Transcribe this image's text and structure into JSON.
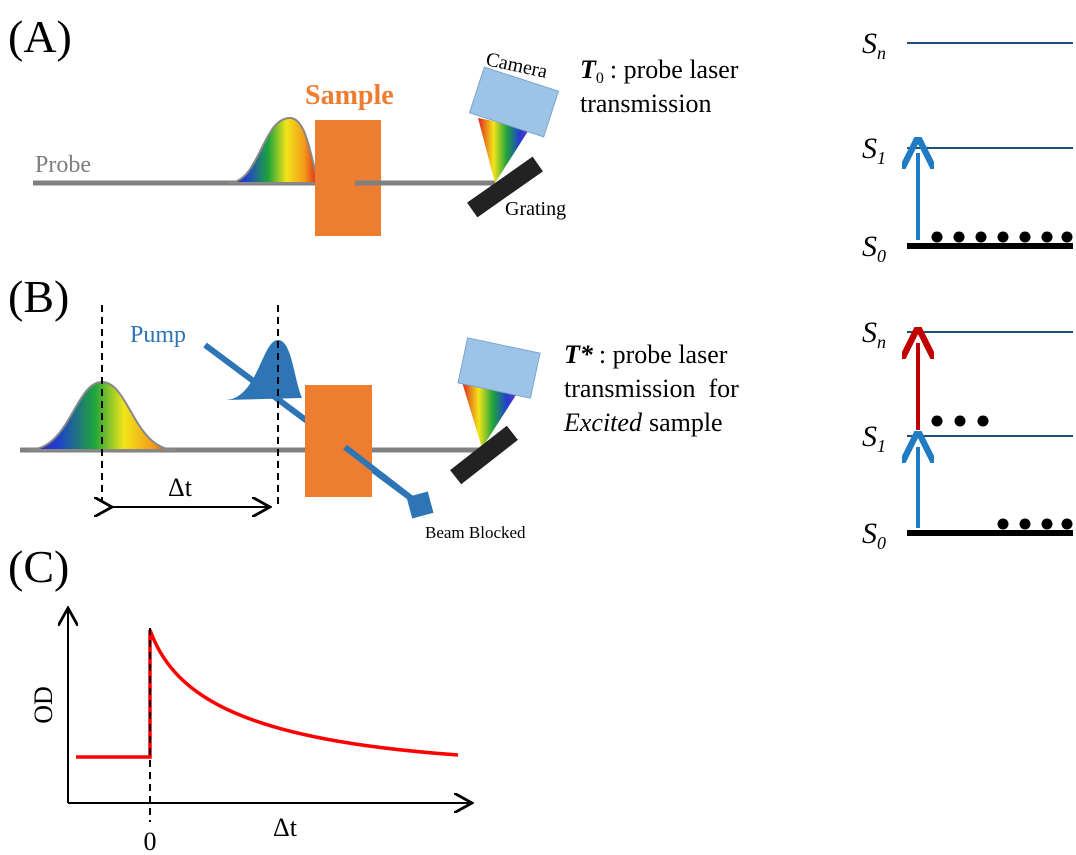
{
  "panels": {
    "a": "(A)",
    "b": "(B)",
    "c": "(C)"
  },
  "panel_a": {
    "probe": "Probe",
    "sample": "Sample",
    "camera": "Camera",
    "grating": "Grating",
    "caption": {
      "symbol": "T",
      "subscript": "0",
      "lines": [
        ": probe laser",
        "transmission"
      ]
    }
  },
  "panel_b": {
    "pump": "Pump",
    "delay": "Δt",
    "blocked": "Beam Blocked",
    "caption": {
      "symbol": "T*",
      "lines": [
        ": probe laser",
        "transmission  for"
      ],
      "emphasis": "Excited",
      "tail": "sample"
    }
  },
  "levels": [
    {
      "symbol": "S",
      "subscript": "n"
    },
    {
      "symbol": "S",
      "subscript": "1"
    },
    {
      "symbol": "S",
      "subscript": "0"
    }
  ],
  "panel_c": {
    "y_label": "OD",
    "x_label": "Δt",
    "origin": "0"
  }
}
